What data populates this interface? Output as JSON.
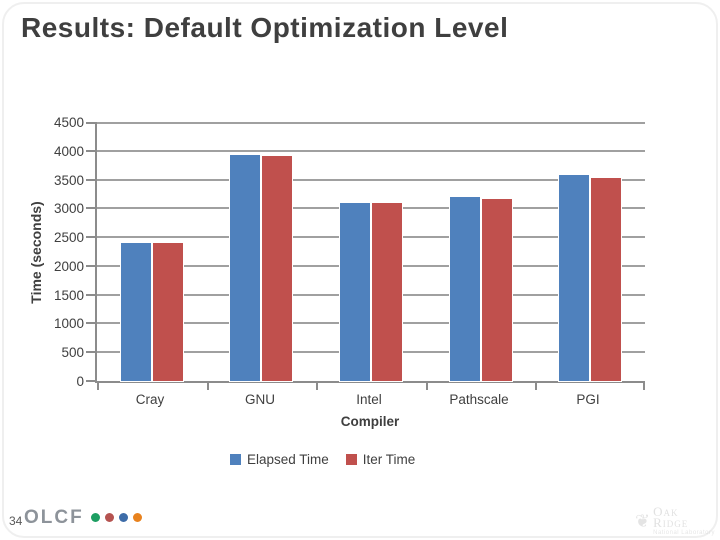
{
  "slide": {
    "title": "Results: Default Optimization Level",
    "page_number": "34",
    "footer_logo": {
      "text": "OLCF",
      "dot_colors": [
        "#1d9e62",
        "#b55350",
        "#3d6ca8",
        "#e8821e"
      ]
    },
    "watermark": {
      "leaf_icon": "oak-leaf-icon",
      "line1": "Oak",
      "line2": "Ridge",
      "line3": "National Laboratory"
    }
  },
  "chart_data": {
    "type": "bar",
    "title": "",
    "categories": [
      "Cray",
      "GNU",
      "Intel",
      "Pathscale",
      "PGI"
    ],
    "series": [
      {
        "name": "Elapsed Time",
        "color": "#4F81BD",
        "values": [
          2390,
          3930,
          3090,
          3200,
          3580
        ]
      },
      {
        "name": "Iter Time",
        "color": "#C0504D",
        "values": [
          2390,
          3910,
          3090,
          3170,
          3530
        ]
      }
    ],
    "xlabel": "Compiler",
    "ylabel": "Time (seconds)",
    "ylim": [
      0,
      4500
    ],
    "ytick_step": 500,
    "grid": true,
    "legend_position": "bottom",
    "grid_color": "#a0a0a0",
    "axis_color": "#8c8c8c",
    "text_color": "#3f3f3f"
  }
}
